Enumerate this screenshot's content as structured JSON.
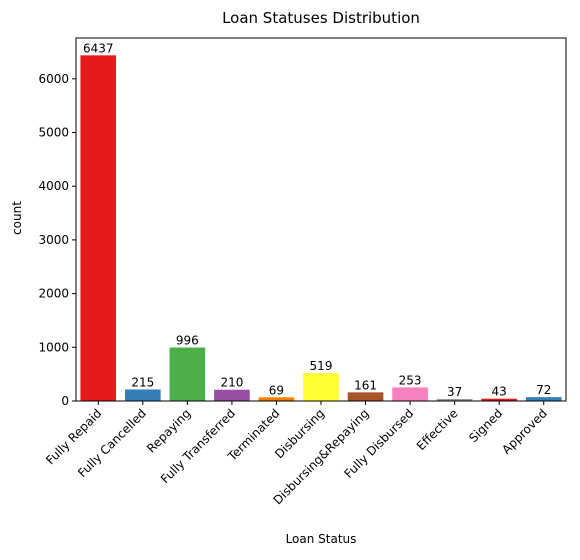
{
  "chart_data": {
    "type": "bar",
    "title": "Loan Statuses Distribution",
    "xlabel": "Loan Status",
    "ylabel": "count",
    "ylim": [
      0,
      6760
    ],
    "yticks": [
      0,
      1000,
      2000,
      3000,
      4000,
      5000,
      6000
    ],
    "grid": false,
    "categories": [
      "Fully Repaid",
      "Fully Cancelled",
      "Repaying",
      "Fully Transferred",
      "Terminated",
      "Disbursing",
      "Disbursing&Repaying",
      "Fully Disbursed",
      "Effective",
      "Signed",
      "Approved"
    ],
    "values": [
      6437,
      215,
      996,
      210,
      69,
      519,
      161,
      253,
      37,
      43,
      72
    ],
    "colors": [
      "#e41a1c",
      "#377eb8",
      "#4daf4a",
      "#984ea3",
      "#ff7f00",
      "#ffff33",
      "#a65628",
      "#f781bf",
      "#999999",
      "#e41a1c",
      "#377eb8"
    ]
  }
}
